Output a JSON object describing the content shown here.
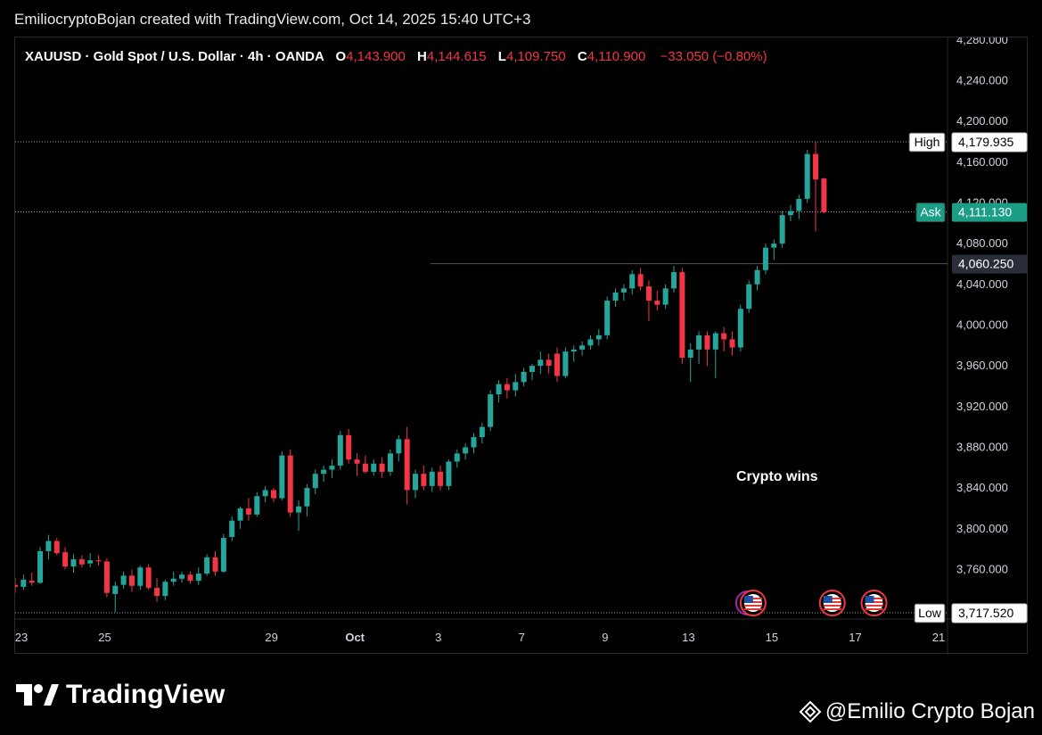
{
  "header": {
    "credit": "EmiliocryptoBojan created with TradingView.com, Oct 14, 2025 15:40 UTC+3"
  },
  "legend": {
    "symbol": "XAUUSD · Gold Spot / U.S. Dollar · 4h · OANDA",
    "open_label": "O",
    "open": "4,143.900",
    "high_label": "H",
    "high": "4,144.615",
    "low_label": "L",
    "low": "4,109.750",
    "close_label": "C",
    "close": "4,110.900",
    "change": "−33.050 (−0.80%)"
  },
  "annotation": "Crypto wins",
  "branding": {
    "platform": "TradingView",
    "watermark": "@Emilio Crypto Bojan",
    "icon": "tradingview-logo"
  },
  "colors": {
    "up": "#26a69a",
    "down": "#f23645",
    "background": "#000000",
    "ask_badge": "#1a9e86",
    "grid_text": "#d1d4dc"
  },
  "chart_data": {
    "type": "candlestick",
    "interval": "4h",
    "y_ticks": [
      3760,
      3800,
      3840,
      3880,
      3920,
      3960,
      4000,
      4040,
      4080,
      4120,
      4160,
      4200,
      4240,
      4280
    ],
    "y_tick_labels": [
      "3,760.000",
      "3,800.000",
      "3,840.000",
      "3,880.000",
      "3,920.000",
      "3,960.000",
      "4,000.000",
      "4,040.000",
      "4,080.000",
      "4,120.000",
      "4,160.000",
      "4,200.000",
      "4,240.000",
      "4,280.000"
    ],
    "x_ticks": [
      {
        "label": "23",
        "day": 23
      },
      {
        "label": "25",
        "day": 25
      },
      {
        "label": "29",
        "day": 29
      },
      {
        "label": "Oct",
        "day": 31
      },
      {
        "label": "3",
        "day": 33
      },
      {
        "label": "7",
        "day": 35
      },
      {
        "label": "9",
        "day": 37
      },
      {
        "label": "13",
        "day": 39
      },
      {
        "label": "15",
        "day": 41
      },
      {
        "label": "17",
        "day": 43
      },
      {
        "label": "21",
        "day": 45
      }
    ],
    "price_lines": {
      "high": {
        "label": "High",
        "value": 4179.935,
        "text": "4,179.935"
      },
      "ask": {
        "label": "Ask",
        "value": 4111.13,
        "text": "4,111.130"
      },
      "level": {
        "value": 4060.25,
        "text": "4,060.250"
      },
      "low": {
        "label": "Low",
        "value": 3717.52,
        "text": "3,717.520"
      }
    },
    "event_markers": [
      {
        "day": 40.7,
        "icon": "us-flag-icon"
      },
      {
        "day": 42.6,
        "icon": "us-flag-icon"
      },
      {
        "day": 43.6,
        "icon": "us-flag-icon"
      }
    ],
    "candles": [
      {
        "day": 23.0,
        "o": 3745,
        "h": 3752,
        "l": 3737,
        "c": 3743
      },
      {
        "day": 23.2,
        "o": 3743,
        "h": 3755,
        "l": 3740,
        "c": 3750
      },
      {
        "day": 23.4,
        "o": 3749,
        "h": 3757,
        "l": 3744,
        "c": 3747
      },
      {
        "day": 23.6,
        "o": 3747,
        "h": 3782,
        "l": 3746,
        "c": 3778
      },
      {
        "day": 23.8,
        "o": 3778,
        "h": 3794,
        "l": 3770,
        "c": 3788
      },
      {
        "day": 24.0,
        "o": 3788,
        "h": 3791,
        "l": 3774,
        "c": 3776
      },
      {
        "day": 24.2,
        "o": 3777,
        "h": 3782,
        "l": 3760,
        "c": 3763
      },
      {
        "day": 24.4,
        "o": 3763,
        "h": 3775,
        "l": 3757,
        "c": 3770
      },
      {
        "day": 24.6,
        "o": 3770,
        "h": 3774,
        "l": 3762,
        "c": 3765
      },
      {
        "day": 24.8,
        "o": 3766,
        "h": 3776,
        "l": 3762,
        "c": 3769
      },
      {
        "day": 25.0,
        "o": 3769,
        "h": 3774,
        "l": 3764,
        "c": 3768
      },
      {
        "day": 25.2,
        "o": 3768,
        "h": 3771,
        "l": 3733,
        "c": 3737
      },
      {
        "day": 25.4,
        "o": 3736,
        "h": 3748,
        "l": 3718,
        "c": 3744
      },
      {
        "day": 25.6,
        "o": 3745,
        "h": 3758,
        "l": 3741,
        "c": 3754
      },
      {
        "day": 25.8,
        "o": 3754,
        "h": 3760,
        "l": 3738,
        "c": 3744
      },
      {
        "day": 26.0,
        "o": 3744,
        "h": 3764,
        "l": 3740,
        "c": 3762
      },
      {
        "day": 26.2,
        "o": 3762,
        "h": 3765,
        "l": 3740,
        "c": 3742
      },
      {
        "day": 26.4,
        "o": 3742,
        "h": 3752,
        "l": 3728,
        "c": 3734
      },
      {
        "day": 26.6,
        "o": 3734,
        "h": 3750,
        "l": 3730,
        "c": 3748
      },
      {
        "day": 26.8,
        "o": 3748,
        "h": 3758,
        "l": 3744,
        "c": 3751
      },
      {
        "day": 27.0,
        "o": 3751,
        "h": 3758,
        "l": 3747,
        "c": 3755
      },
      {
        "day": 27.2,
        "o": 3755,
        "h": 3758,
        "l": 3746,
        "c": 3749
      },
      {
        "day": 27.4,
        "o": 3749,
        "h": 3762,
        "l": 3745,
        "c": 3756
      },
      {
        "day": 27.6,
        "o": 3756,
        "h": 3775,
        "l": 3754,
        "c": 3772
      },
      {
        "day": 27.8,
        "o": 3772,
        "h": 3778,
        "l": 3754,
        "c": 3758
      },
      {
        "day": 28.0,
        "o": 3758,
        "h": 3795,
        "l": 3757,
        "c": 3791
      },
      {
        "day": 28.2,
        "o": 3792,
        "h": 3812,
        "l": 3788,
        "c": 3808
      },
      {
        "day": 28.4,
        "o": 3808,
        "h": 3822,
        "l": 3800,
        "c": 3820
      },
      {
        "day": 28.6,
        "o": 3820,
        "h": 3830,
        "l": 3808,
        "c": 3814
      },
      {
        "day": 28.8,
        "o": 3814,
        "h": 3836,
        "l": 3812,
        "c": 3832
      },
      {
        "day": 29.0,
        "o": 3832,
        "h": 3842,
        "l": 3826,
        "c": 3838
      },
      {
        "day": 29.2,
        "o": 3838,
        "h": 3840,
        "l": 3826,
        "c": 3830
      },
      {
        "day": 29.4,
        "o": 3830,
        "h": 3876,
        "l": 3828,
        "c": 3872
      },
      {
        "day": 29.6,
        "o": 3872,
        "h": 3878,
        "l": 3812,
        "c": 3816
      },
      {
        "day": 29.8,
        "o": 3816,
        "h": 3828,
        "l": 3798,
        "c": 3822
      },
      {
        "day": 30.0,
        "o": 3822,
        "h": 3844,
        "l": 3812,
        "c": 3840
      },
      {
        "day": 30.2,
        "o": 3840,
        "h": 3858,
        "l": 3834,
        "c": 3854
      },
      {
        "day": 30.4,
        "o": 3854,
        "h": 3862,
        "l": 3846,
        "c": 3858
      },
      {
        "day": 30.6,
        "o": 3858,
        "h": 3868,
        "l": 3850,
        "c": 3862
      },
      {
        "day": 30.8,
        "o": 3862,
        "h": 3896,
        "l": 3858,
        "c": 3892
      },
      {
        "day": 31.0,
        "o": 3892,
        "h": 3898,
        "l": 3864,
        "c": 3868
      },
      {
        "day": 31.2,
        "o": 3868,
        "h": 3874,
        "l": 3852,
        "c": 3864
      },
      {
        "day": 31.4,
        "o": 3864,
        "h": 3872,
        "l": 3854,
        "c": 3856
      },
      {
        "day": 31.6,
        "o": 3856,
        "h": 3868,
        "l": 3852,
        "c": 3864
      },
      {
        "day": 31.8,
        "o": 3864,
        "h": 3870,
        "l": 3850,
        "c": 3856
      },
      {
        "day": 32.0,
        "o": 3856,
        "h": 3878,
        "l": 3852,
        "c": 3874
      },
      {
        "day": 32.2,
        "o": 3874,
        "h": 3892,
        "l": 3866,
        "c": 3888
      },
      {
        "day": 32.4,
        "o": 3888,
        "h": 3900,
        "l": 3824,
        "c": 3838
      },
      {
        "day": 32.6,
        "o": 3838,
        "h": 3858,
        "l": 3830,
        "c": 3854
      },
      {
        "day": 32.8,
        "o": 3854,
        "h": 3862,
        "l": 3838,
        "c": 3842
      },
      {
        "day": 33.0,
        "o": 3842,
        "h": 3860,
        "l": 3836,
        "c": 3856
      },
      {
        "day": 33.2,
        "o": 3856,
        "h": 3862,
        "l": 3838,
        "c": 3842
      },
      {
        "day": 33.4,
        "o": 3842,
        "h": 3868,
        "l": 3838,
        "c": 3866
      },
      {
        "day": 33.6,
        "o": 3866,
        "h": 3878,
        "l": 3860,
        "c": 3874
      },
      {
        "day": 33.8,
        "o": 3874,
        "h": 3884,
        "l": 3868,
        "c": 3880
      },
      {
        "day": 34.0,
        "o": 3880,
        "h": 3894,
        "l": 3874,
        "c": 3890
      },
      {
        "day": 34.2,
        "o": 3890,
        "h": 3904,
        "l": 3884,
        "c": 3900
      },
      {
        "day": 34.4,
        "o": 3900,
        "h": 3936,
        "l": 3896,
        "c": 3932
      },
      {
        "day": 34.6,
        "o": 3932,
        "h": 3946,
        "l": 3924,
        "c": 3942
      },
      {
        "day": 34.8,
        "o": 3942,
        "h": 3948,
        "l": 3928,
        "c": 3936
      },
      {
        "day": 35.0,
        "o": 3936,
        "h": 3952,
        "l": 3930,
        "c": 3944
      },
      {
        "day": 35.2,
        "o": 3944,
        "h": 3958,
        "l": 3940,
        "c": 3954
      },
      {
        "day": 35.4,
        "o": 3954,
        "h": 3962,
        "l": 3946,
        "c": 3960
      },
      {
        "day": 35.6,
        "o": 3960,
        "h": 3974,
        "l": 3952,
        "c": 3966
      },
      {
        "day": 35.8,
        "o": 3966,
        "h": 3972,
        "l": 3952,
        "c": 3960
      },
      {
        "day": 36.0,
        "o": 3972,
        "h": 3978,
        "l": 3944,
        "c": 3950
      },
      {
        "day": 36.2,
        "o": 3950,
        "h": 3978,
        "l": 3948,
        "c": 3974
      },
      {
        "day": 36.4,
        "o": 3974,
        "h": 3980,
        "l": 3964,
        "c": 3976
      },
      {
        "day": 36.6,
        "o": 3976,
        "h": 3984,
        "l": 3970,
        "c": 3980
      },
      {
        "day": 36.8,
        "o": 3980,
        "h": 3990,
        "l": 3976,
        "c": 3986
      },
      {
        "day": 37.0,
        "o": 3986,
        "h": 3996,
        "l": 3980,
        "c": 3990
      },
      {
        "day": 37.2,
        "o": 3990,
        "h": 4028,
        "l": 3986,
        "c": 4024
      },
      {
        "day": 37.4,
        "o": 4024,
        "h": 4036,
        "l": 4018,
        "c": 4032
      },
      {
        "day": 37.6,
        "o": 4032,
        "h": 4040,
        "l": 4024,
        "c": 4036
      },
      {
        "day": 37.8,
        "o": 4036,
        "h": 4054,
        "l": 4030,
        "c": 4050
      },
      {
        "day": 38.0,
        "o": 4050,
        "h": 4056,
        "l": 4034,
        "c": 4038
      },
      {
        "day": 38.2,
        "o": 4038,
        "h": 4044,
        "l": 4004,
        "c": 4024
      },
      {
        "day": 38.4,
        "o": 4024,
        "h": 4034,
        "l": 4014,
        "c": 4020
      },
      {
        "day": 38.6,
        "o": 4020,
        "h": 4040,
        "l": 4016,
        "c": 4036
      },
      {
        "day": 38.8,
        "o": 4036,
        "h": 4058,
        "l": 4032,
        "c": 4052
      },
      {
        "day": 39.0,
        "o": 4052,
        "h": 4056,
        "l": 3962,
        "c": 3968
      },
      {
        "day": 39.2,
        "o": 3968,
        "h": 3982,
        "l": 3944,
        "c": 3976
      },
      {
        "day": 39.4,
        "o": 3976,
        "h": 3994,
        "l": 3962,
        "c": 3990
      },
      {
        "day": 39.6,
        "o": 3990,
        "h": 3994,
        "l": 3960,
        "c": 3976
      },
      {
        "day": 39.8,
        "o": 3976,
        "h": 3994,
        "l": 3948,
        "c": 3992
      },
      {
        "day": 40.0,
        "o": 3992,
        "h": 3998,
        "l": 3974,
        "c": 3986
      },
      {
        "day": 40.2,
        "o": 3986,
        "h": 3994,
        "l": 3970,
        "c": 3978
      },
      {
        "day": 40.4,
        "o": 3978,
        "h": 4020,
        "l": 3974,
        "c": 4016
      },
      {
        "day": 40.6,
        "o": 4016,
        "h": 4044,
        "l": 4012,
        "c": 4040
      },
      {
        "day": 40.8,
        "o": 4040,
        "h": 4058,
        "l": 4034,
        "c": 4054
      },
      {
        "day": 41.0,
        "o": 4054,
        "h": 4080,
        "l": 4050,
        "c": 4076
      },
      {
        "day": 41.2,
        "o": 4076,
        "h": 4084,
        "l": 4064,
        "c": 4080
      },
      {
        "day": 41.4,
        "o": 4080,
        "h": 4112,
        "l": 4076,
        "c": 4108
      },
      {
        "day": 41.6,
        "o": 4108,
        "h": 4118,
        "l": 4102,
        "c": 4112
      },
      {
        "day": 41.8,
        "o": 4112,
        "h": 4128,
        "l": 4104,
        "c": 4124
      },
      {
        "day": 42.0,
        "o": 4124,
        "h": 4172,
        "l": 4120,
        "c": 4168
      },
      {
        "day": 42.2,
        "o": 4168,
        "h": 4180,
        "l": 4092,
        "c": 4143
      },
      {
        "day": 42.4,
        "o": 4143.9,
        "h": 4144.615,
        "l": 4109.75,
        "c": 4110.9
      }
    ]
  }
}
